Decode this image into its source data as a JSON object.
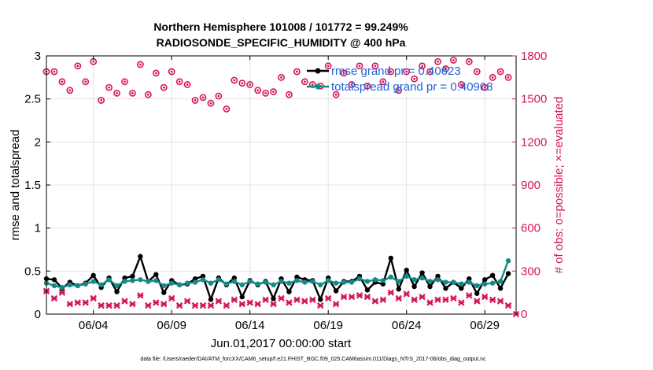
{
  "chart_data": {
    "type": "line",
    "title": "Northern Hemisphere 101008 / 101772 = 99.249%",
    "subtitle": "RADIOSONDE_SPECIFIC_HUMIDITY @ 400 hPa",
    "xlabel": "Jun.01,2017 00:00:00 start",
    "ylabel": "rmse and totalspread",
    "ylabel_right": "# of obs: o=possible; ×=evaluated",
    "footer": "data file: /Users/raeder/DAI/ATM_forcXX/CAM6_setup/f.e21.FHIST_BGC.f09_025.CAM6assim.011/Diags_NTrS_2017-06/obs_diag_output.nc",
    "x_tick_labels": [
      "06/04",
      "06/09",
      "06/14",
      "06/19",
      "06/24",
      "06/29"
    ],
    "x_tick_days": [
      4,
      9,
      14,
      19,
      24,
      29
    ],
    "xlim": [
      1.0,
      31.0
    ],
    "ylim": [
      0,
      3
    ],
    "yticks": [
      "0",
      "0.5",
      "1",
      "1.5",
      "2",
      "2.5",
      "3"
    ],
    "y2lim": [
      0,
      1800
    ],
    "y2ticks": [
      "0",
      "300",
      "600",
      "900",
      "1200",
      "1500",
      "1800"
    ],
    "grid": true,
    "legend_position": "top-right",
    "series": [
      {
        "name": "rmse grand pr = 0.40623",
        "color": "#000000",
        "axis": "left",
        "x": [
          1.0,
          1.5,
          2.0,
          2.5,
          3.0,
          3.5,
          4.0,
          4.5,
          5.0,
          5.5,
          6.0,
          6.5,
          7.0,
          7.5,
          8.0,
          8.5,
          9.0,
          9.5,
          10.0,
          10.5,
          11.0,
          11.5,
          12.0,
          12.5,
          13.0,
          13.5,
          14.0,
          14.5,
          15.0,
          15.5,
          16.0,
          16.5,
          17.0,
          17.5,
          18.0,
          18.5,
          19.0,
          19.5,
          20.0,
          20.5,
          21.0,
          21.5,
          22.0,
          22.5,
          23.0,
          23.5,
          24.0,
          24.5,
          25.0,
          25.5,
          26.0,
          26.5,
          27.0,
          27.5,
          28.0,
          28.5,
          29.0,
          29.5,
          30.0,
          30.5
        ],
        "values": [
          0.41,
          0.4,
          0.3,
          0.37,
          0.33,
          0.36,
          0.45,
          0.31,
          0.42,
          0.26,
          0.42,
          0.44,
          0.67,
          0.38,
          0.46,
          0.25,
          0.39,
          0.34,
          0.35,
          0.41,
          0.44,
          0.17,
          0.42,
          0.34,
          0.42,
          0.2,
          0.39,
          0.34,
          0.38,
          0.18,
          0.41,
          0.26,
          0.43,
          0.4,
          0.39,
          0.17,
          0.42,
          0.27,
          0.38,
          0.38,
          0.44,
          0.28,
          0.37,
          0.35,
          0.65,
          0.29,
          0.51,
          0.32,
          0.48,
          0.32,
          0.44,
          0.3,
          0.37,
          0.3,
          0.41,
          0.24,
          0.4,
          0.45,
          0.3,
          0.47
        ]
      },
      {
        "name": "totalspread grand pr = 0.40908",
        "color": "#138a86",
        "axis": "left",
        "x": [
          1.0,
          1.5,
          2.0,
          2.5,
          3.0,
          3.5,
          4.0,
          4.5,
          5.0,
          5.5,
          6.0,
          6.5,
          7.0,
          7.5,
          8.0,
          8.5,
          9.0,
          9.5,
          10.0,
          10.5,
          11.0,
          11.5,
          12.0,
          12.5,
          13.0,
          13.5,
          14.0,
          14.5,
          15.0,
          15.5,
          16.0,
          16.5,
          17.0,
          17.5,
          18.0,
          18.5,
          19.0,
          19.5,
          20.0,
          20.5,
          21.0,
          21.5,
          22.0,
          22.5,
          23.0,
          23.5,
          24.0,
          24.5,
          25.0,
          25.5,
          26.0,
          26.5,
          27.0,
          27.5,
          28.0,
          28.5,
          29.0,
          29.5,
          30.0,
          30.5
        ],
        "values": [
          0.36,
          0.33,
          0.31,
          0.34,
          0.33,
          0.35,
          0.38,
          0.34,
          0.4,
          0.33,
          0.38,
          0.39,
          0.4,
          0.38,
          0.39,
          0.33,
          0.36,
          0.34,
          0.36,
          0.37,
          0.4,
          0.36,
          0.4,
          0.35,
          0.38,
          0.34,
          0.38,
          0.35,
          0.37,
          0.34,
          0.38,
          0.36,
          0.39,
          0.37,
          0.38,
          0.34,
          0.39,
          0.36,
          0.37,
          0.37,
          0.41,
          0.38,
          0.4,
          0.39,
          0.43,
          0.38,
          0.44,
          0.4,
          0.42,
          0.38,
          0.4,
          0.37,
          0.37,
          0.35,
          0.37,
          0.33,
          0.35,
          0.36,
          0.38,
          0.62
        ]
      },
      {
        "name": "possible",
        "marker": "o",
        "color": "#d4145a",
        "axis": "right",
        "x": [
          1.0,
          1.5,
          2.0,
          2.5,
          3.0,
          3.5,
          4.0,
          4.5,
          5.0,
          5.5,
          6.0,
          6.5,
          7.0,
          7.5,
          8.0,
          8.5,
          9.0,
          9.5,
          10.0,
          10.5,
          11.0,
          11.5,
          12.0,
          12.5,
          13.0,
          13.5,
          14.0,
          14.5,
          15.0,
          15.5,
          16.0,
          16.5,
          17.0,
          17.5,
          18.0,
          18.5,
          19.0,
          19.5,
          20.0,
          20.5,
          21.0,
          21.5,
          22.0,
          22.5,
          23.0,
          23.5,
          24.0,
          24.5,
          25.0,
          25.5,
          26.0,
          26.5,
          27.0,
          27.5,
          28.0,
          28.5,
          29.0,
          29.5,
          30.0,
          30.5
        ],
        "values": [
          1690,
          1690,
          1620,
          1560,
          1730,
          1620,
          1760,
          1490,
          1580,
          1540,
          1620,
          1540,
          1740,
          1530,
          1680,
          1580,
          1690,
          1620,
          1600,
          1490,
          1510,
          1470,
          1520,
          1430,
          1630,
          1610,
          1600,
          1560,
          1540,
          1550,
          1650,
          1530,
          1690,
          1620,
          1600,
          1590,
          1730,
          1530,
          1680,
          1600,
          1730,
          1590,
          1730,
          1620,
          1690,
          1560,
          1690,
          1640,
          1730,
          1690,
          1760,
          1710,
          1770,
          1600,
          1760,
          1690,
          1580,
          1650,
          1690,
          1650
        ]
      },
      {
        "name": "evaluated",
        "marker": "x",
        "color": "#d4145a",
        "axis": "right",
        "x": [
          1.0,
          1.5,
          2.0,
          2.5,
          3.0,
          3.5,
          4.0,
          4.5,
          5.0,
          5.5,
          6.0,
          6.5,
          7.0,
          7.5,
          8.0,
          8.5,
          9.0,
          9.5,
          10.0,
          10.5,
          11.0,
          11.5,
          12.0,
          12.5,
          13.0,
          13.5,
          14.0,
          14.5,
          15.0,
          15.5,
          16.0,
          16.5,
          17.0,
          17.5,
          18.0,
          18.5,
          19.0,
          19.5,
          20.0,
          20.5,
          21.0,
          21.5,
          22.0,
          22.5,
          23.0,
          23.5,
          24.0,
          24.5,
          25.0,
          25.5,
          26.0,
          26.5,
          27.0,
          27.5,
          28.0,
          28.5,
          29.0,
          29.5,
          30.0,
          30.5,
          31.0
        ],
        "values": [
          160,
          110,
          150,
          70,
          80,
          80,
          110,
          60,
          60,
          60,
          90,
          70,
          130,
          60,
          80,
          70,
          110,
          60,
          90,
          60,
          60,
          60,
          90,
          60,
          100,
          70,
          80,
          70,
          100,
          70,
          110,
          80,
          100,
          90,
          100,
          60,
          110,
          70,
          120,
          120,
          130,
          120,
          90,
          100,
          150,
          110,
          140,
          100,
          120,
          80,
          100,
          100,
          110,
          80,
          130,
          90,
          120,
          100,
          90,
          60,
          0
        ]
      }
    ]
  }
}
